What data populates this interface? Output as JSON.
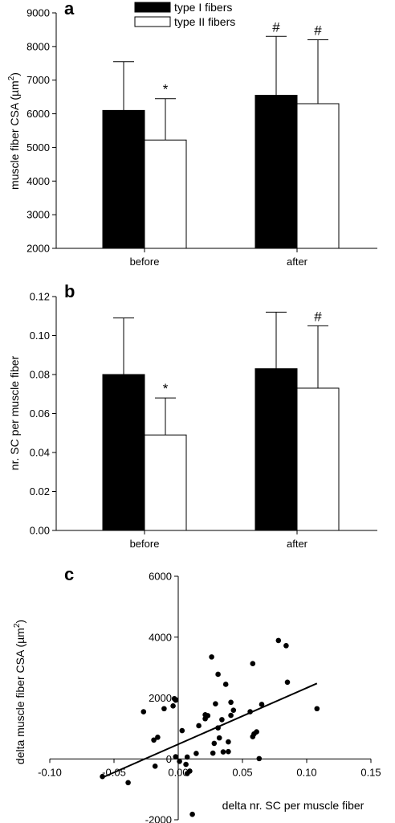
{
  "colors": {
    "type1": "#000000",
    "type2": "#ffffff",
    "line": "#000000"
  },
  "chart_data": [
    {
      "type": "bar",
      "panel_label": "a",
      "ylabel_main": "muscle fiber CSA (µm",
      "ylabel_sup": "2",
      "ylabel_end": ")",
      "categories": [
        "before",
        "after"
      ],
      "series": [
        {
          "name": "type I fibers",
          "values": [
            6100,
            6550
          ],
          "errors": [
            1450,
            1750
          ],
          "markers": [
            "",
            "#"
          ]
        },
        {
          "name": "type II fibers",
          "values": [
            5220,
            6300
          ],
          "errors": [
            1230,
            1900
          ],
          "markers": [
            "*",
            "#"
          ]
        }
      ],
      "ylim": [
        2000,
        9000
      ],
      "yticks": [
        "2000",
        "3000",
        "4000",
        "5000",
        "6000",
        "7000",
        "8000",
        "9000"
      ],
      "legend_position": "top-center"
    },
    {
      "type": "bar",
      "panel_label": "b",
      "ylabel": "nr. SC per muscle fiber",
      "categories": [
        "before",
        "after"
      ],
      "series": [
        {
          "name": "type I fibers",
          "values": [
            0.08,
            0.083
          ],
          "errors": [
            0.029,
            0.029
          ],
          "markers": [
            "",
            ""
          ]
        },
        {
          "name": "type II fibers",
          "values": [
            0.049,
            0.073
          ],
          "errors": [
            0.019,
            0.032
          ],
          "markers": [
            "*",
            "#"
          ]
        }
      ],
      "ylim": [
        0,
        0.12
      ],
      "yticks": [
        "0.00",
        "0.02",
        "0.04",
        "0.06",
        "0.08",
        "0.10",
        "0.12"
      ]
    },
    {
      "type": "scatter",
      "panel_label": "c",
      "xlabel": "delta nr. SC per muscle fiber",
      "ylabel_main": "delta muscle fiber CSA (µm",
      "ylabel_sup": "2",
      "ylabel_end": ")",
      "xlim": [
        -0.1,
        0.15
      ],
      "ylim": [
        -2000,
        6000
      ],
      "xticks": [
        "-0.10",
        "-0.05",
        "0.00",
        "0.05",
        "0.10",
        "0.15"
      ],
      "yticks": [
        "-2000",
        "0",
        "2000",
        "4000",
        "6000"
      ],
      "points": [
        [
          -0.059,
          -580
        ],
        [
          -0.039,
          -780
        ],
        [
          -0.018,
          -240
        ],
        [
          -0.019,
          620
        ],
        [
          -0.016,
          710
        ],
        [
          -0.027,
          1550
        ],
        [
          -0.011,
          1650
        ],
        [
          -0.004,
          1740
        ],
        [
          -0.003,
          1980
        ],
        [
          -0.002,
          1930
        ],
        [
          -0.002,
          70
        ],
        [
          0.001,
          -80
        ],
        [
          0.003,
          930
        ],
        [
          0.006,
          -180
        ],
        [
          0.007,
          60
        ],
        [
          0.007,
          -480
        ],
        [
          0.009,
          -400
        ],
        [
          0.011,
          -1820
        ],
        [
          0.014,
          180
        ],
        [
          0.016,
          1090
        ],
        [
          0.021,
          1320
        ],
        [
          0.021,
          1450
        ],
        [
          0.023,
          1420
        ],
        [
          0.026,
          3350
        ],
        [
          0.027,
          190
        ],
        [
          0.028,
          510
        ],
        [
          0.029,
          1810
        ],
        [
          0.031,
          2780
        ],
        [
          0.031,
          1020
        ],
        [
          0.032,
          690
        ],
        [
          0.034,
          1290
        ],
        [
          0.035,
          230
        ],
        [
          0.037,
          2450
        ],
        [
          0.039,
          560
        ],
        [
          0.039,
          240
        ],
        [
          0.041,
          1430
        ],
        [
          0.041,
          1860
        ],
        [
          0.043,
          1600
        ],
        [
          0.056,
          1550
        ],
        [
          0.058,
          3130
        ],
        [
          0.058,
          730
        ],
        [
          0.059,
          820
        ],
        [
          0.061,
          890
        ],
        [
          0.063,
          10
        ],
        [
          0.065,
          1790
        ],
        [
          0.078,
          3890
        ],
        [
          0.084,
          3720
        ],
        [
          0.085,
          2520
        ],
        [
          0.108,
          1650
        ]
      ],
      "trend_line": {
        "x": [
          -0.06,
          0.108
        ],
        "y": [
          -630,
          2480
        ]
      }
    }
  ]
}
